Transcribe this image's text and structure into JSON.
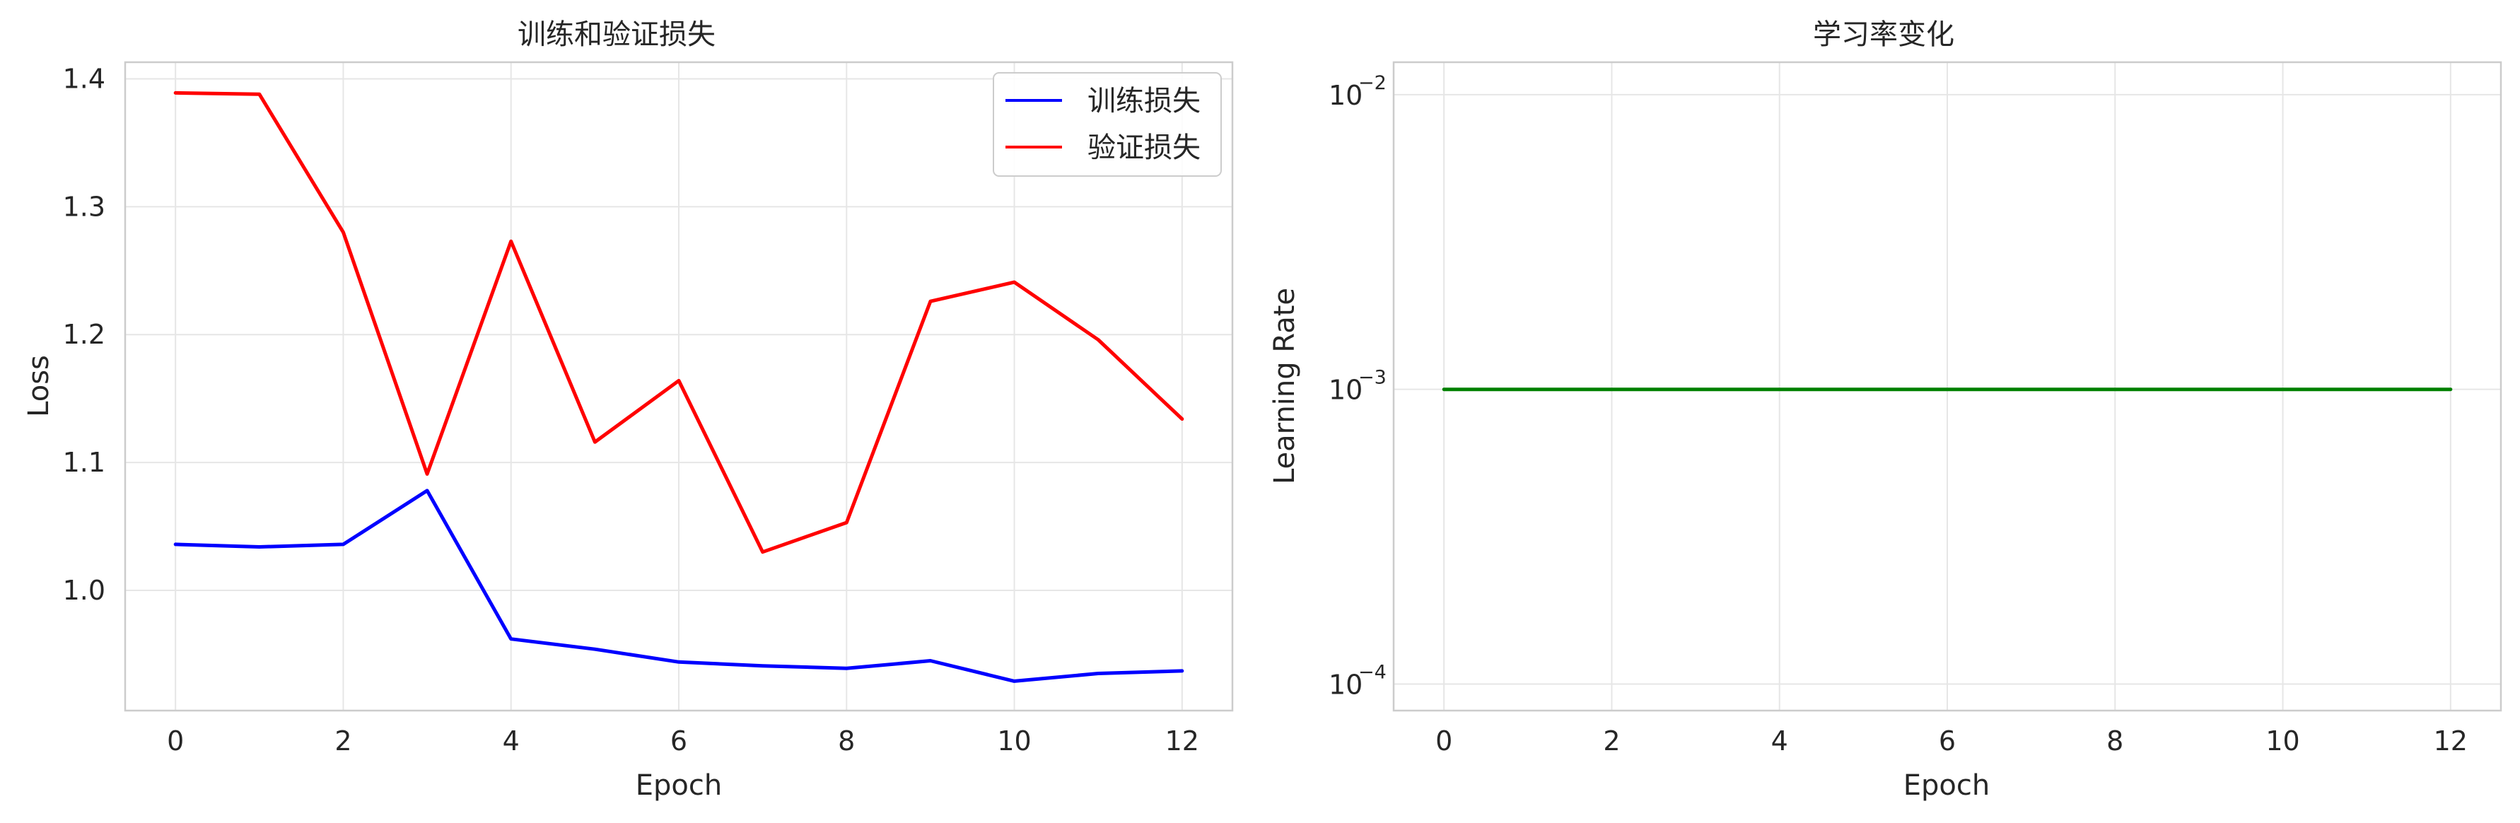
{
  "chart_data": [
    {
      "type": "line",
      "title": "训练和验证损失",
      "xlabel": "Epoch",
      "ylabel": "Loss",
      "xlim": [
        -0.6,
        12.6
      ],
      "ylim": [
        0.906,
        1.413
      ],
      "xticks": [
        0,
        2,
        4,
        6,
        8,
        10,
        12
      ],
      "xtick_labels": [
        "0",
        "2",
        "4",
        "6",
        "8",
        "10",
        "12"
      ],
      "yticks": [
        1.0,
        1.1,
        1.2,
        1.3,
        1.4
      ],
      "ytick_labels": [
        "1.0",
        "1.1",
        "1.2",
        "1.3",
        "1.4"
      ],
      "grid": true,
      "legend_position": "top-right",
      "x": [
        0,
        1,
        2,
        3,
        4,
        5,
        6,
        7,
        8,
        9,
        10,
        11,
        12
      ],
      "series": [
        {
          "name": "训练损失",
          "color": "#0000ff",
          "values": [
            1.036,
            1.034,
            1.036,
            1.078,
            0.962,
            0.954,
            0.944,
            0.941,
            0.939,
            0.945,
            0.929,
            0.935,
            0.937
          ]
        },
        {
          "name": "验证损失",
          "color": "#ff0000",
          "values": [
            1.389,
            1.388,
            1.28,
            1.091,
            1.273,
            1.116,
            1.164,
            1.03,
            1.053,
            1.226,
            1.241,
            1.196,
            1.134
          ]
        }
      ]
    },
    {
      "type": "line",
      "title": "学习率变化",
      "xlabel": "Epoch",
      "ylabel": "Learning Rate",
      "yscale": "log",
      "xlim": [
        -0.6,
        12.6
      ],
      "ylim_log10": [
        -4.09,
        -1.89
      ],
      "xticks": [
        0,
        2,
        4,
        6,
        8,
        10,
        12
      ],
      "xtick_labels": [
        "0",
        "2",
        "4",
        "6",
        "8",
        "10",
        "12"
      ],
      "yticks_log10": [
        -4,
        -3,
        -2
      ],
      "ytick_labels": [
        {
          "base": "10",
          "exp": "−4"
        },
        {
          "base": "10",
          "exp": "−3"
        },
        {
          "base": "10",
          "exp": "−2"
        }
      ],
      "grid": true,
      "x": [
        0,
        1,
        2,
        3,
        4,
        5,
        6,
        7,
        8,
        9,
        10,
        11,
        12
      ],
      "series": [
        {
          "name": "Learning Rate",
          "color": "#008000",
          "values": [
            0.001,
            0.001,
            0.001,
            0.001,
            0.001,
            0.001,
            0.001,
            0.001,
            0.001,
            0.001,
            0.001,
            0.001,
            0.001
          ]
        }
      ]
    }
  ]
}
